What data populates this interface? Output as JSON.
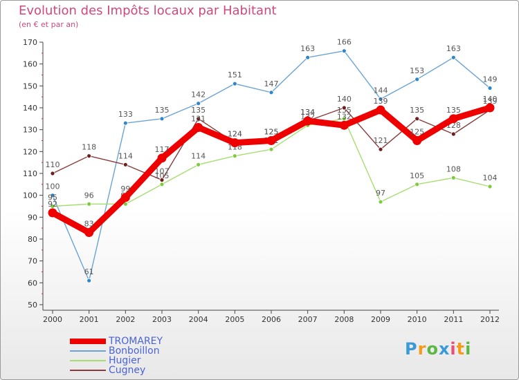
{
  "header": {
    "title": "Evolution des Impôts locaux par Habitant",
    "subtitle": "(en € et par an)"
  },
  "brand": {
    "text": "Proxiti",
    "colors": [
      "#3a9ad9",
      "#f39b1d",
      "#5bb845",
      "#3a9ad9",
      "#e94e77",
      "#f39b1d",
      "#5bb845"
    ]
  },
  "chart_data": {
    "type": "line",
    "title": "Evolution des Impôts locaux par Habitant",
    "subtitle": "(en € et par an)",
    "xlabel": "",
    "ylabel": "",
    "categories": [
      "2000",
      "2001",
      "2002",
      "2003",
      "2004",
      "2005",
      "2006",
      "2007",
      "2008",
      "2009",
      "2010",
      "2011",
      "2012"
    ],
    "ylim": [
      50,
      170
    ],
    "yticks": [
      50,
      60,
      70,
      80,
      90,
      100,
      110,
      120,
      130,
      140,
      150,
      160,
      170
    ],
    "grid": false,
    "legend_position": "bottom-left",
    "series": [
      {
        "name": "Bonboillon",
        "color": "#6aa3d5",
        "marker": "#2f86c9",
        "values": [
          100,
          61,
          133,
          135,
          142,
          151,
          147,
          163,
          166,
          144,
          153,
          163,
          149
        ],
        "labels": [
          "100",
          "61",
          "133",
          "135",
          "142",
          "151",
          "147",
          "163",
          "166",
          "144",
          "153",
          "163",
          "149"
        ]
      },
      {
        "name": "Hugier",
        "color": "#a6de6e",
        "marker": "#7fcb3d",
        "values": [
          95,
          96,
          96,
          105,
          114,
          118,
          121,
          132,
          135,
          97,
          105,
          108,
          104
        ],
        "labels": [
          "95",
          "96",
          "96",
          "105",
          "114",
          "118",
          "121",
          "132",
          "135",
          "97",
          "105",
          "108",
          "104"
        ]
      },
      {
        "name": "Cugney",
        "color": "#8a3a3a",
        "marker": "#6b1f1f",
        "values": [
          110,
          118,
          114,
          107,
          135,
          124,
          125,
          134,
          140,
          121,
          135,
          128,
          139
        ],
        "labels": [
          "110",
          "118",
          "114",
          "107",
          "135",
          "124",
          "125",
          "134",
          "140",
          "121",
          "135",
          "128",
          "139"
        ]
      },
      {
        "name": "TROMAREY",
        "color": "#ee0000",
        "marker": "#ee0000",
        "values": [
          92,
          83,
          99,
          117,
          131,
          124,
          125,
          134,
          132,
          139,
          125,
          135,
          140
        ],
        "labels": [
          "92",
          "83",
          "99",
          "117",
          "131",
          "124",
          "125",
          "134",
          "132",
          "139",
          "125",
          "135",
          "140"
        ]
      }
    ],
    "legend": [
      "TROMAREY",
      "Bonboillon",
      "Hugier",
      "Cugney"
    ]
  }
}
